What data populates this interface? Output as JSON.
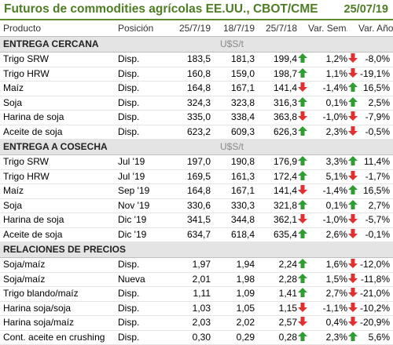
{
  "title": "Futuros de commodities agrícolas EE.UU., CBOT/CME",
  "date": "25/07/19",
  "columns": {
    "product": "Producto",
    "position": "Posición",
    "d1": "25/7/19",
    "d2": "18/7/19",
    "d3": "25/7/18",
    "week": "Var. Sem.",
    "year": "Var. Año"
  },
  "colors": {
    "up": "#2e9e2e",
    "down": "#e03030",
    "title": "#4e7d24"
  },
  "sections": [
    {
      "name": "ENTREGA CERCANA",
      "unit": "U$S/t",
      "rows": [
        {
          "product": "Trigo SRW",
          "position": "Disp.",
          "d1": "183,5",
          "d2": "181,3",
          "d3": "199,4",
          "d3_dir": "up",
          "week": "1,2%",
          "week_dir": "down",
          "year": "-8,0%"
        },
        {
          "product": "Trigo HRW",
          "position": "Disp.",
          "d1": "160,8",
          "d2": "159,0",
          "d3": "198,7",
          "d3_dir": "up",
          "week": "1,1%",
          "week_dir": "down",
          "year": "-19,1%"
        },
        {
          "product": "Maíz",
          "position": "Disp.",
          "d1": "164,8",
          "d2": "167,1",
          "d3": "141,4",
          "d3_dir": "down",
          "week": "-1,4%",
          "week_dir": "up",
          "year": "16,5%"
        },
        {
          "product": "Soja",
          "position": "Disp.",
          "d1": "324,3",
          "d2": "323,8",
          "d3": "316,3",
          "d3_dir": "up",
          "week": "0,1%",
          "week_dir": "up",
          "year": "2,5%"
        },
        {
          "product": "Harina de soja",
          "position": "Disp.",
          "d1": "335,0",
          "d2": "338,4",
          "d3": "363,8",
          "d3_dir": "down",
          "week": "-1,0%",
          "week_dir": "down",
          "year": "-7,9%"
        },
        {
          "product": "Aceite de soja",
          "position": "Disp.",
          "d1": "623,2",
          "d2": "609,3",
          "d3": "626,3",
          "d3_dir": "up",
          "week": "2,3%",
          "week_dir": "down",
          "year": "-0,5%"
        }
      ]
    },
    {
      "name": "ENTREGA A COSECHA",
      "unit": "U$S/t",
      "rows": [
        {
          "product": "Trigo SRW",
          "position": "Jul '19",
          "d1": "197,0",
          "d2": "190,8",
          "d3": "176,9",
          "d3_dir": "up",
          "week": "3,3%",
          "week_dir": "up",
          "year": "11,4%"
        },
        {
          "product": "Trigo HRW",
          "position": "Jul '19",
          "d1": "169,5",
          "d2": "161,3",
          "d3": "172,4",
          "d3_dir": "up",
          "week": "5,1%",
          "week_dir": "down",
          "year": "-1,7%"
        },
        {
          "product": "Maíz",
          "position": "Sep '19",
          "d1": "164,8",
          "d2": "167,1",
          "d3": "141,4",
          "d3_dir": "down",
          "week": "-1,4%",
          "week_dir": "up",
          "year": "16,5%"
        },
        {
          "product": "Soja",
          "position": "Nov '19",
          "d1": "330,6",
          "d2": "330,3",
          "d3": "321,8",
          "d3_dir": "up",
          "week": "0,1%",
          "week_dir": "up",
          "year": "2,7%"
        },
        {
          "product": "Harina de soja",
          "position": "Dic '19",
          "d1": "341,5",
          "d2": "344,8",
          "d3": "362,1",
          "d3_dir": "down",
          "week": "-1,0%",
          "week_dir": "down",
          "year": "-5,7%"
        },
        {
          "product": "Aceite de soja",
          "position": "Dic '19",
          "d1": "634,7",
          "d2": "618,4",
          "d3": "635,4",
          "d3_dir": "up",
          "week": "2,6%",
          "week_dir": "down",
          "year": "-0,1%"
        }
      ]
    },
    {
      "name": "RELACIONES DE PRECIOS",
      "unit": "",
      "rows": [
        {
          "product": "Soja/maíz",
          "position": "Disp.",
          "d1": "1,97",
          "d2": "1,94",
          "d3": "2,24",
          "d3_dir": "up",
          "week": "1,6%",
          "week_dir": "down",
          "year": "-12,0%"
        },
        {
          "product": "Soja/maíz",
          "position": "Nueva",
          "d1": "2,01",
          "d2": "1,98",
          "d3": "2,28",
          "d3_dir": "up",
          "week": "1,5%",
          "week_dir": "down",
          "year": "-11,8%"
        },
        {
          "product": "Trigo blando/maíz",
          "position": "Disp.",
          "d1": "1,11",
          "d2": "1,09",
          "d3": "1,41",
          "d3_dir": "up",
          "week": "2,7%",
          "week_dir": "down",
          "year": "-21,0%"
        },
        {
          "product": "Harina soja/soja",
          "position": "Disp.",
          "d1": "1,03",
          "d2": "1,05",
          "d3": "1,15",
          "d3_dir": "down",
          "week": "-1,1%",
          "week_dir": "down",
          "year": "-10,2%"
        },
        {
          "product": "Harina soja/maíz",
          "position": "Disp.",
          "d1": "2,03",
          "d2": "2,02",
          "d3": "2,57",
          "d3_dir": "down",
          "week": "0,4%",
          "week_dir": "down",
          "year": "-20,9%"
        },
        {
          "product": "Cont. aceite en crushing",
          "position": "Disp.",
          "d1": "0,30",
          "d2": "0,29",
          "d3": "0,28",
          "d3_dir": "up",
          "week": "2,3%",
          "week_dir": "up",
          "year": "5,6%"
        }
      ]
    }
  ]
}
